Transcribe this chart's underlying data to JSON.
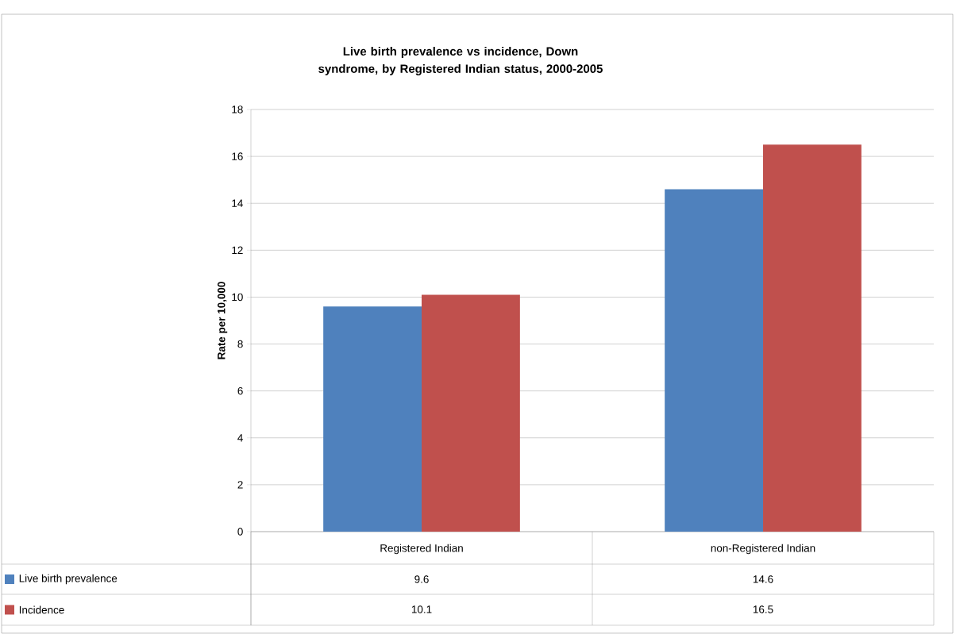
{
  "chart_data": {
    "type": "bar",
    "title": "Live birth prevalence vs incidence, Down syndrome, by Registered Indian status, 2000-2005",
    "ylabel": "Rate per 10,000",
    "categories": [
      "Registered Indian",
      "non-Registered Indian"
    ],
    "series": [
      {
        "name": "Live birth prevalence",
        "color": "#4f81bd",
        "values": [
          9.6,
          14.6
        ]
      },
      {
        "name": "Incidence",
        "color": "#c0504d",
        "values": [
          10.1,
          16.5
        ]
      }
    ],
    "ylim": [
      0,
      18
    ],
    "yticks": [
      0,
      2,
      4,
      6,
      8,
      10,
      12,
      14,
      16,
      18
    ],
    "grid": "y",
    "legend": "bottom",
    "data_labels": true
  }
}
